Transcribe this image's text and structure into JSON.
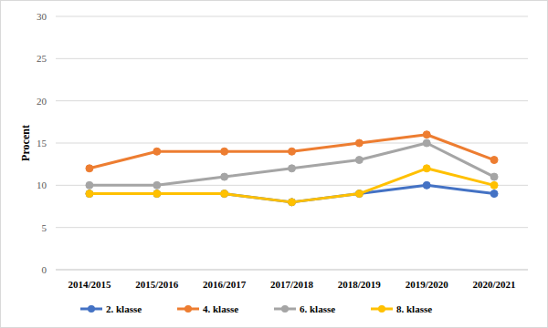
{
  "chart_data": {
    "type": "line",
    "y_label": "Procent",
    "categories": [
      "2014/2015",
      "2015/2016",
      "2016/2017",
      "2017/2018",
      "2018/2019",
      "2019/2020",
      "2020/2021"
    ],
    "series": [
      {
        "name": "2. klasse",
        "color": "#4472c4",
        "values": [
          9,
          9,
          9,
          8,
          9,
          10,
          9
        ]
      },
      {
        "name": "4. klasse",
        "color": "#ed7d31",
        "values": [
          12,
          14,
          14,
          14,
          15,
          16,
          13
        ]
      },
      {
        "name": "6. klasse",
        "color": "#a5a5a5",
        "values": [
          10,
          10,
          11,
          12,
          13,
          15,
          11
        ]
      },
      {
        "name": "8. klasse",
        "color": "#ffc000",
        "values": [
          9,
          9,
          9,
          8,
          9,
          12,
          10
        ]
      }
    ],
    "ylim": [
      0,
      30
    ],
    "yticks": [
      0,
      5,
      10,
      15,
      20,
      25,
      30
    ],
    "grid": true,
    "legend": "bottom",
    "marker": "circle"
  }
}
